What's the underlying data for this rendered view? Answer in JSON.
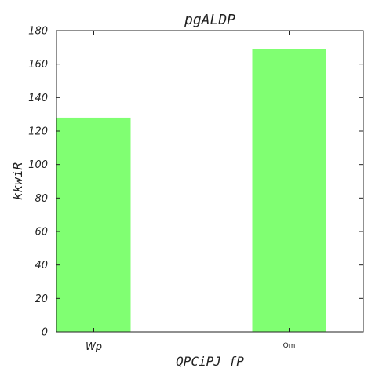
{
  "chart_data": {
    "type": "bar",
    "title": "pgALDP",
    "xlabel": "QPCiPJ fP",
    "ylabel": "kkwiR",
    "categories": [
      "Wp",
      "Qm"
    ],
    "values": [
      128,
      169
    ],
    "ylim": [
      0,
      180
    ],
    "yticks": [
      0,
      20,
      40,
      60,
      80,
      100,
      120,
      140,
      160,
      180
    ],
    "bar_color": "#80ff72",
    "grid": false
  }
}
